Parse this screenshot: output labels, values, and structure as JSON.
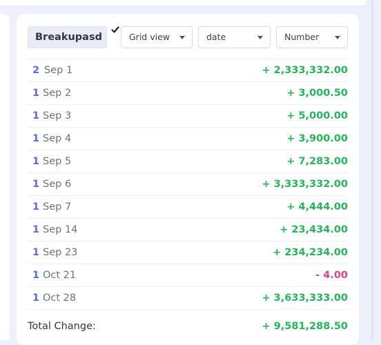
{
  "controls": {
    "breakup_value": "Breakupasd",
    "view_select": "Grid view",
    "group_select": "date",
    "metric_select": "Number"
  },
  "rows": [
    {
      "count": "2",
      "date": "Sep 1",
      "amount": "+ 2,333,332.00",
      "sign": "pos"
    },
    {
      "count": "1",
      "date": "Sep 2",
      "amount": "+ 3,000.50",
      "sign": "pos"
    },
    {
      "count": "1",
      "date": "Sep 3",
      "amount": "+ 5,000.00",
      "sign": "pos"
    },
    {
      "count": "1",
      "date": "Sep 4",
      "amount": "+ 3,900.00",
      "sign": "pos"
    },
    {
      "count": "1",
      "date": "Sep 5",
      "amount": "+ 7,283.00",
      "sign": "pos"
    },
    {
      "count": "1",
      "date": "Sep 6",
      "amount": "+ 3,333,332.00",
      "sign": "pos"
    },
    {
      "count": "1",
      "date": "Sep 7",
      "amount": "+ 4,444.00",
      "sign": "pos"
    },
    {
      "count": "1",
      "date": "Sep 14",
      "amount": "+ 23,434.00",
      "sign": "pos"
    },
    {
      "count": "1",
      "date": "Sep 23",
      "amount": "+ 234,234.00",
      "sign": "pos"
    },
    {
      "count": "1",
      "date": "Oct 21",
      "amount": "- 4.00",
      "sign": "neg"
    },
    {
      "count": "1",
      "date": "Oct 28",
      "amount": "+ 3,633,333.00",
      "sign": "pos"
    }
  ],
  "total": {
    "label": "Total Change:",
    "value": "+ 9,581,288.50"
  },
  "colors": {
    "positive": "#28b35a",
    "negative": "#e0457a",
    "count": "#5a6fd6"
  }
}
